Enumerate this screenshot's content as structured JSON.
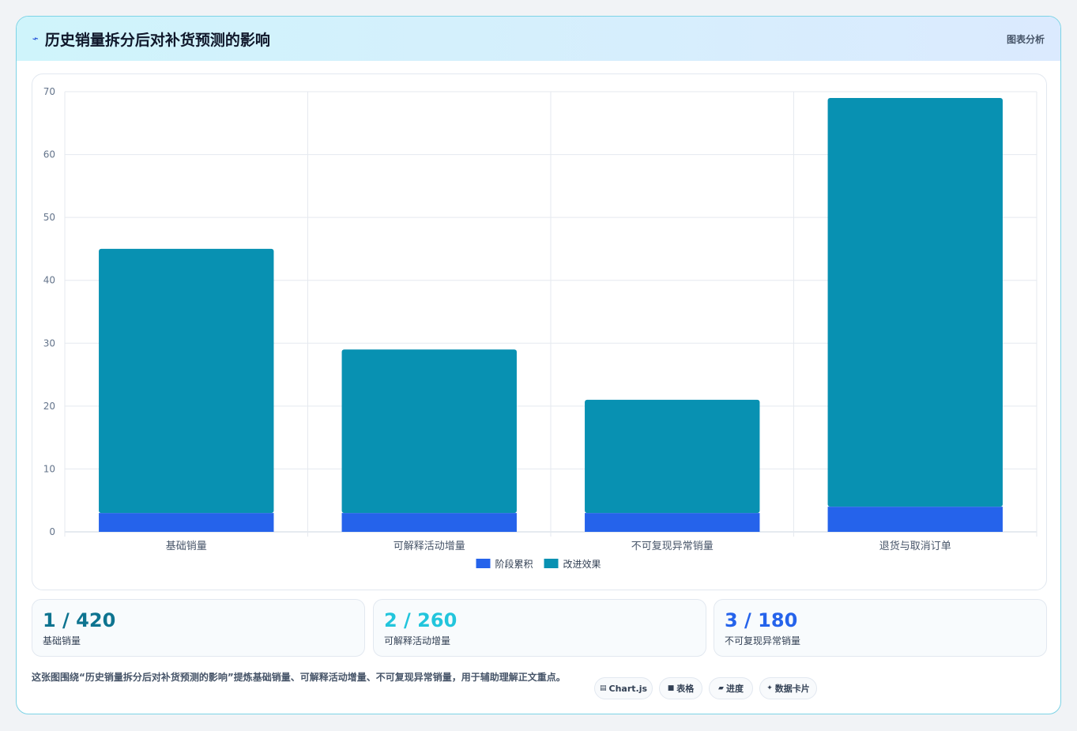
{
  "header": {
    "title": "历史销量拆分后对补货预测的影响",
    "tag": "图表分析"
  },
  "chart_data": {
    "type": "bar",
    "stacked": true,
    "categories": [
      "基础销量",
      "可解释活动增量",
      "不可复现异常销量",
      "退货与取消订单"
    ],
    "series": [
      {
        "name": "阶段累积",
        "color": "#2563eb",
        "values": [
          3,
          3,
          3,
          4
        ]
      },
      {
        "name": "改进效果",
        "color": "#0891b2",
        "values": [
          42,
          26,
          18,
          65
        ]
      }
    ],
    "ylim": [
      0,
      70
    ],
    "yticks": [
      0,
      10,
      20,
      30,
      40,
      50,
      60,
      70
    ],
    "grid": true,
    "legend": "bottom"
  },
  "stats": [
    {
      "value": "1 / 420",
      "label": "基础销量",
      "color": "#0e7490"
    },
    {
      "value": "2 / 260",
      "label": "可解释活动增量",
      "color": "#22c5dc"
    },
    {
      "value": "3 / 180",
      "label": "不可复现异常销量",
      "color": "#2563eb"
    }
  ],
  "footer": {
    "text": "这张图围绕“历史销量拆分后对补货预测的影响”提炼基础销量、可解释活动增量、不可复现异常销量，用于辅助理解正文重点。"
  },
  "chips": [
    {
      "icon": "▤",
      "label": "Chart.js",
      "icon_name": "chart-icon"
    },
    {
      "icon": "■",
      "label": "表格",
      "icon_name": "table-icon"
    },
    {
      "icon": "▰",
      "label": "进度",
      "icon_name": "progress-icon"
    },
    {
      "icon": "✦",
      "label": "数据卡片",
      "icon_name": "card-icon"
    }
  ]
}
